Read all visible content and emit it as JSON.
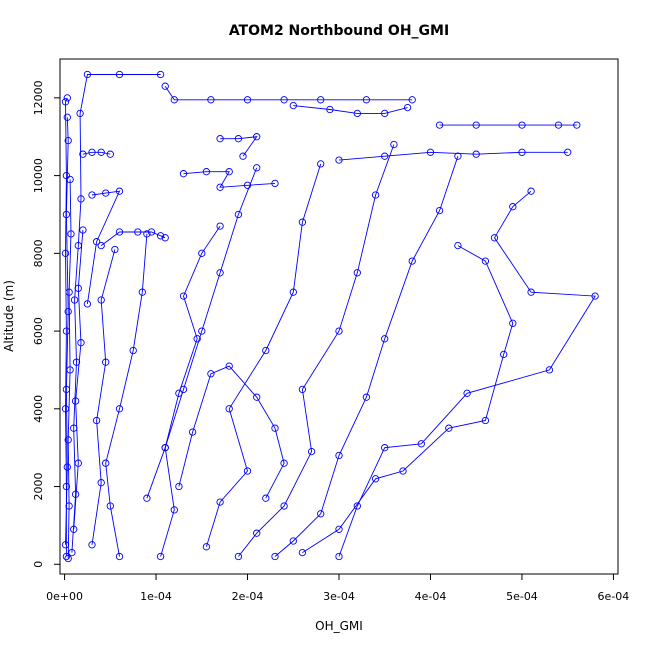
{
  "chart_data": {
    "type": "scatter",
    "title": "ATOM2 Northbound OH_GMI",
    "xlabel": "OH_GMI",
    "ylabel": "Altitude (m)",
    "xlim": [
      -5e-06,
      0.000605
    ],
    "ylim": [
      -250,
      13000
    ],
    "x_ticks": [
      {
        "value": 0.0,
        "label": "0e+00"
      },
      {
        "value": 0.0001,
        "label": "1e-04"
      },
      {
        "value": 0.0002,
        "label": "2e-04"
      },
      {
        "value": 0.0003,
        "label": "3e-04"
      },
      {
        "value": 0.0004,
        "label": "4e-04"
      },
      {
        "value": 0.0005,
        "label": "5e-04"
      },
      {
        "value": 0.0006,
        "label": "6e-04"
      }
    ],
    "y_ticks": [
      {
        "value": 0,
        "label": "0"
      },
      {
        "value": 2000,
        "label": "2000"
      },
      {
        "value": 4000,
        "label": "4000"
      },
      {
        "value": 6000,
        "label": "6000"
      },
      {
        "value": 8000,
        "label": "8000"
      },
      {
        "value": 10000,
        "label": "10000"
      },
      {
        "value": 12000,
        "label": "12000"
      }
    ],
    "grid": false,
    "marker": "open-circle",
    "connected": true,
    "colors": {
      "series": "#0000ff",
      "axis": "#000000",
      "background": "#ffffff"
    },
    "series": [
      {
        "points": [
          [
            2e-06,
            200
          ],
          [
            2e-06,
            2000
          ],
          [
            1e-06,
            4000
          ],
          [
            2e-06,
            6000
          ],
          [
            1e-06,
            8000
          ],
          [
            2e-06,
            10000
          ],
          [
            1e-06,
            11900
          ],
          [
            3e-06,
            12000
          ]
        ]
      },
      {
        "points": [
          [
            4e-06,
            150
          ],
          [
            5e-06,
            1500
          ],
          [
            4e-06,
            3200
          ],
          [
            6e-06,
            5000
          ],
          [
            5e-06,
            7000
          ],
          [
            7e-06,
            8500
          ],
          [
            6e-06,
            9900
          ]
        ]
      },
      {
        "points": [
          [
            1e-06,
            500
          ],
          [
            3e-06,
            2500
          ],
          [
            2e-06,
            4500
          ],
          [
            4e-06,
            6500
          ],
          [
            2e-06,
            9000
          ],
          [
            4e-06,
            10900
          ],
          [
            3e-06,
            11500
          ]
        ]
      },
      {
        "points": [
          [
            8e-06,
            300
          ],
          [
            1.2e-05,
            1800
          ],
          [
            1e-05,
            3500
          ],
          [
            1.3e-05,
            5200
          ],
          [
            1.1e-05,
            6800
          ],
          [
            1.5e-05,
            8200
          ],
          [
            1.8e-05,
            9400
          ],
          [
            1.7e-05,
            11600
          ],
          [
            2.5e-05,
            12600
          ],
          [
            6e-05,
            12600
          ],
          [
            0.000105,
            12600
          ]
        ]
      },
      {
        "points": [
          [
            0.00011,
            12300
          ],
          [
            0.00012,
            11950
          ],
          [
            0.00016,
            11950
          ],
          [
            0.0002,
            11950
          ],
          [
            0.00024,
            11950
          ],
          [
            0.00028,
            11950
          ],
          [
            0.00033,
            11950
          ],
          [
            0.00038,
            11950
          ]
        ]
      },
      {
        "points": [
          [
            2e-05,
            10550
          ],
          [
            3e-05,
            10600
          ],
          [
            4e-05,
            10600
          ],
          [
            5e-05,
            10550
          ]
        ]
      },
      {
        "points": [
          [
            3e-05,
            9500
          ],
          [
            4.5e-05,
            9550
          ],
          [
            6e-05,
            9600
          ],
          [
            3.5e-05,
            8300
          ],
          [
            2.5e-05,
            6700
          ]
        ]
      },
      {
        "points": [
          [
            4e-05,
            8200
          ],
          [
            6e-05,
            8550
          ],
          [
            8e-05,
            8550
          ],
          [
            9.5e-05,
            8550
          ],
          [
            0.000105,
            8450
          ],
          [
            0.00011,
            8400
          ]
        ]
      },
      {
        "points": [
          [
            0.00013,
            10050
          ],
          [
            0.000155,
            10100
          ],
          [
            0.00018,
            10100
          ],
          [
            0.00017,
            9700
          ],
          [
            0.0002,
            9750
          ],
          [
            0.00023,
            9800
          ]
        ]
      },
      {
        "points": [
          [
            0.00017,
            10950
          ],
          [
            0.00019,
            10950
          ],
          [
            0.00021,
            11000
          ],
          [
            0.000195,
            10500
          ]
        ]
      },
      {
        "points": [
          [
            0.00025,
            11800
          ],
          [
            0.00029,
            11700
          ],
          [
            0.00032,
            11600
          ],
          [
            0.00035,
            11600
          ],
          [
            0.000375,
            11750
          ]
        ]
      },
      {
        "points": [
          [
            0.00041,
            11300
          ],
          [
            0.00045,
            11300
          ],
          [
            0.0005,
            11300
          ],
          [
            0.00054,
            11300
          ],
          [
            0.00056,
            11300
          ]
        ]
      },
      {
        "points": [
          [
            0.0003,
            10400
          ],
          [
            0.00035,
            10500
          ],
          [
            0.0004,
            10600
          ],
          [
            0.00045,
            10550
          ],
          [
            0.0005,
            10600
          ],
          [
            0.00055,
            10600
          ]
        ]
      },
      {
        "points": [
          [
            6e-05,
            200
          ],
          [
            5e-05,
            1500
          ],
          [
            4.5e-05,
            2600
          ],
          [
            6e-05,
            4000
          ],
          [
            7.5e-05,
            5500
          ],
          [
            8.5e-05,
            7000
          ],
          [
            9e-05,
            8500
          ]
        ]
      },
      {
        "points": [
          [
            0.000105,
            200
          ],
          [
            0.00012,
            1400
          ],
          [
            0.00011,
            3000
          ],
          [
            0.00013,
            4500
          ],
          [
            0.00015,
            6000
          ],
          [
            0.00017,
            7500
          ],
          [
            0.00019,
            9000
          ],
          [
            0.00021,
            10200
          ]
        ]
      },
      {
        "points": [
          [
            0.000155,
            450
          ],
          [
            0.00017,
            1600
          ],
          [
            0.0002,
            2400
          ],
          [
            0.00018,
            4000
          ],
          [
            0.00022,
            5500
          ],
          [
            0.00025,
            7000
          ],
          [
            0.00026,
            8800
          ],
          [
            0.00028,
            10300
          ]
        ]
      },
      {
        "points": [
          [
            0.00019,
            200
          ],
          [
            0.00021,
            800
          ],
          [
            0.00024,
            1500
          ],
          [
            0.00027,
            2900
          ],
          [
            0.00026,
            4500
          ],
          [
            0.0003,
            6000
          ],
          [
            0.00032,
            7500
          ],
          [
            0.00034,
            9500
          ],
          [
            0.00036,
            10800
          ]
        ]
      },
      {
        "points": [
          [
            0.00023,
            200
          ],
          [
            0.00025,
            600
          ],
          [
            0.00028,
            1300
          ],
          [
            0.0003,
            2800
          ],
          [
            0.00033,
            4300
          ],
          [
            0.00035,
            5800
          ],
          [
            0.00038,
            7800
          ],
          [
            0.00041,
            9100
          ],
          [
            0.00043,
            10500
          ]
        ]
      },
      {
        "points": [
          [
            0.0003,
            200
          ],
          [
            0.00032,
            1500
          ],
          [
            0.00035,
            3000
          ],
          [
            0.00039,
            3100
          ],
          [
            0.00044,
            4400
          ],
          [
            0.00053,
            5000
          ],
          [
            0.00058,
            6900
          ],
          [
            0.00051,
            7000
          ],
          [
            0.00047,
            8400
          ],
          [
            0.00049,
            9200
          ],
          [
            0.00051,
            9600
          ]
        ]
      },
      {
        "points": [
          [
            0.00026,
            300
          ],
          [
            0.0003,
            900
          ],
          [
            0.00034,
            2200
          ],
          [
            0.00037,
            2400
          ],
          [
            0.00042,
            3500
          ],
          [
            0.00046,
            3700
          ],
          [
            0.00048,
            5400
          ],
          [
            0.00049,
            6200
          ],
          [
            0.00046,
            7800
          ],
          [
            0.00043,
            8200
          ]
        ]
      },
      {
        "points": [
          [
            0.000125,
            2000
          ],
          [
            0.00014,
            3400
          ],
          [
            0.00016,
            4900
          ],
          [
            0.00018,
            5100
          ],
          [
            0.00021,
            4300
          ],
          [
            0.00023,
            3500
          ],
          [
            0.00024,
            2600
          ],
          [
            0.00022,
            1700
          ]
        ]
      },
      {
        "points": [
          [
            9e-05,
            1700
          ],
          [
            0.00011,
            3000
          ],
          [
            0.000125,
            4400
          ],
          [
            0.000145,
            5800
          ],
          [
            0.00013,
            6900
          ],
          [
            0.00015,
            8000
          ],
          [
            0.00017,
            8700
          ]
        ]
      },
      {
        "points": [
          [
            3e-05,
            500
          ],
          [
            4e-05,
            2100
          ],
          [
            3.5e-05,
            3700
          ],
          [
            4.5e-05,
            5200
          ],
          [
            4e-05,
            6800
          ],
          [
            5.5e-05,
            8100
          ]
        ]
      },
      {
        "points": [
          [
            1e-05,
            900
          ],
          [
            1.5e-05,
            2600
          ],
          [
            1.2e-05,
            4200
          ],
          [
            1.8e-05,
            5700
          ],
          [
            1.5e-05,
            7100
          ],
          [
            2e-05,
            8600
          ]
        ]
      }
    ]
  }
}
